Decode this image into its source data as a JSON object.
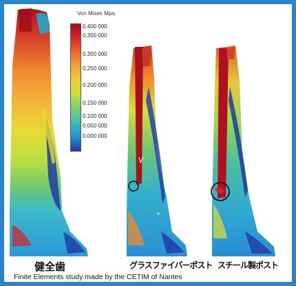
{
  "legend": {
    "title": "Von Mises Mpa.",
    "labels": [
      "0.400 000",
      "0.350 000",
      "0.300 000",
      "0.250 000",
      "0.200 000",
      "0.150 000",
      "0.100 000",
      "0.050 000",
      "0.000 000"
    ]
  },
  "captions": {
    "healthy": "健全歯",
    "glass_fiber_post": "グラスファイバーポスト",
    "steel_post": "スチール製ポスト"
  },
  "footer": "Finite Elements study made by the CETIM of Nantes",
  "colors": {
    "frame": "#2a86c8",
    "high_stress": "#b01020",
    "low_stress": "#1f3aa6"
  }
}
